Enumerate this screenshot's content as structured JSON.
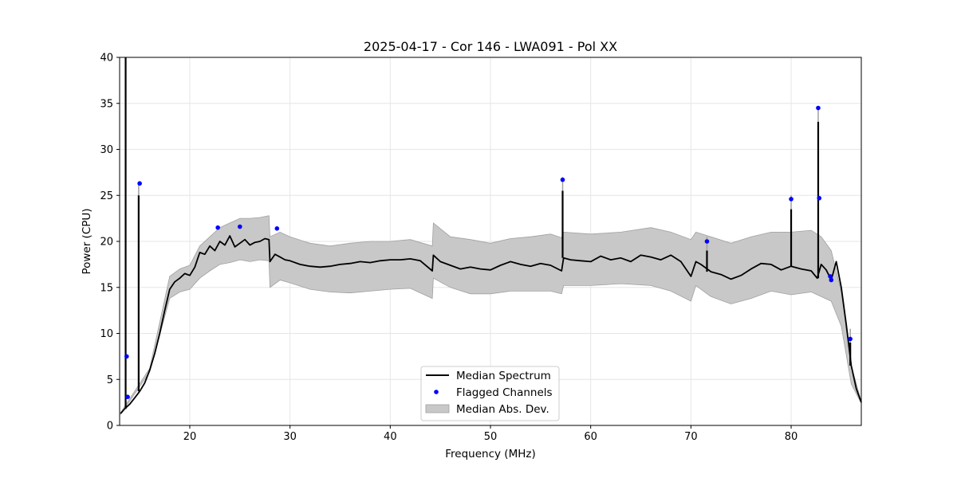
{
  "chart_data": {
    "type": "line",
    "title": "2025-04-17 - Cor 146 - LWA091 - Pol XX",
    "xlabel": "Frequency (MHz)",
    "ylabel": "Power (CPU)",
    "xlim": [
      13,
      87
    ],
    "ylim": [
      0,
      40
    ],
    "xticks": [
      20,
      30,
      40,
      50,
      60,
      70,
      80
    ],
    "yticks": [
      0,
      5,
      10,
      15,
      20,
      25,
      30,
      35,
      40
    ],
    "grid": true,
    "legend_position": "lower-center",
    "colors": {
      "median": "#000000",
      "flagged": "#0000ff",
      "mad_fill": "#c8c8c8",
      "mad_edge": "#a0a0a0",
      "grid": "#e6e6e6"
    },
    "series": [
      {
        "name": "Median Spectrum",
        "kind": "line",
        "x": [
          13.1,
          13.5,
          14.0,
          14.5,
          15.0,
          15.5,
          16.0,
          16.5,
          17.0,
          17.5,
          18.0,
          18.5,
          19.0,
          19.5,
          20.0,
          20.5,
          21.0,
          21.5,
          22.0,
          22.5,
          23.0,
          23.5,
          24.0,
          24.5,
          25.0,
          25.5,
          26.0,
          26.5,
          27.0,
          27.5,
          27.9,
          28.0,
          28.5,
          29.0,
          29.5,
          30.0,
          31.0,
          32.0,
          33.0,
          34.0,
          35.0,
          36.0,
          37.0,
          38.0,
          39.0,
          40.0,
          41.0,
          42.0,
          43.0,
          44.2,
          44.3,
          45.0,
          46.0,
          47.0,
          48.0,
          49.0,
          50.0,
          51.0,
          52.0,
          53.0,
          54.0,
          55.0,
          56.0,
          57.1,
          57.3,
          58.0,
          59.0,
          60.0,
          61.0,
          62.0,
          63.0,
          64.0,
          65.0,
          66.0,
          67.0,
          68.0,
          69.0,
          70.0,
          70.5,
          71.0,
          72.0,
          73.0,
          74.0,
          75.0,
          76.0,
          77.0,
          78.0,
          79.0,
          80.0,
          81.0,
          82.0,
          82.6,
          83.0,
          83.5,
          84.0,
          84.5,
          85.0,
          85.5,
          86.0,
          86.5,
          87.0
        ],
        "y": [
          1.3,
          1.8,
          2.3,
          3.0,
          3.7,
          4.6,
          6.0,
          7.8,
          10.0,
          12.5,
          14.8,
          15.6,
          16.0,
          16.5,
          16.3,
          17.2,
          18.8,
          18.6,
          19.5,
          19.0,
          20.0,
          19.6,
          20.6,
          19.4,
          19.8,
          20.2,
          19.6,
          19.9,
          20.0,
          20.3,
          20.2,
          17.8,
          18.6,
          18.3,
          18.0,
          17.9,
          17.5,
          17.3,
          17.2,
          17.3,
          17.5,
          17.6,
          17.8,
          17.7,
          17.9,
          18.0,
          18.0,
          18.1,
          17.9,
          16.8,
          18.5,
          17.8,
          17.4,
          17.0,
          17.2,
          17.0,
          16.9,
          17.4,
          17.8,
          17.5,
          17.3,
          17.6,
          17.4,
          16.8,
          18.2,
          18.0,
          17.9,
          17.8,
          18.4,
          18.0,
          18.2,
          17.8,
          18.5,
          18.3,
          18.0,
          18.5,
          17.8,
          16.2,
          17.8,
          17.5,
          16.7,
          16.4,
          15.9,
          16.3,
          17.0,
          17.6,
          17.5,
          16.9,
          17.3,
          17.0,
          16.8,
          16.0,
          17.5,
          16.9,
          15.8,
          17.8,
          15.0,
          11.0,
          6.5,
          4.0,
          2.5
        ]
      },
      {
        "name": "Median Spectrum spikes",
        "kind": "spikes",
        "x": [
          13.6,
          14.9,
          57.2,
          71.6,
          80.0,
          82.7,
          85.9
        ],
        "y": [
          40,
          25.0,
          25.5,
          19.0,
          23.5,
          33.0,
          9.0
        ]
      },
      {
        "name": "Flagged Channels",
        "kind": "points",
        "x": [
          13.7,
          13.8,
          15.0,
          22.8,
          25.0,
          28.7,
          57.2,
          71.6,
          80.0,
          82.7,
          82.8,
          83.9,
          84.0,
          85.9
        ],
        "y": [
          7.5,
          3.1,
          26.3,
          21.5,
          21.6,
          21.4,
          26.7,
          20.0,
          24.6,
          34.5,
          24.7,
          16.2,
          15.8,
          9.4
        ]
      },
      {
        "name": "Median Abs. Dev.",
        "kind": "band",
        "x": [
          13.1,
          16.0,
          18.0,
          19.0,
          20.0,
          21.0,
          22.0,
          23.0,
          24.0,
          25.0,
          26.0,
          27.0,
          27.9,
          28.0,
          29.0,
          30.0,
          32.0,
          34.0,
          36.0,
          38.0,
          40.0,
          42.0,
          44.2,
          44.3,
          46.0,
          48.0,
          50.0,
          52.0,
          54.0,
          56.0,
          57.1,
          57.3,
          60.0,
          63.0,
          66.0,
          68.0,
          70.0,
          70.5,
          72.0,
          74.0,
          76.0,
          78.0,
          80.0,
          82.0,
          83.0,
          84.0,
          85.0,
          86.0,
          87.0
        ],
        "lower": [
          1.2,
          5.8,
          13.8,
          14.5,
          14.8,
          16.0,
          16.8,
          17.5,
          17.7,
          18.0,
          17.8,
          18.0,
          17.9,
          15.0,
          15.8,
          15.5,
          14.8,
          14.5,
          14.4,
          14.6,
          14.8,
          14.9,
          13.8,
          16.0,
          15.0,
          14.3,
          14.3,
          14.6,
          14.6,
          14.6,
          14.3,
          15.2,
          15.2,
          15.4,
          15.2,
          14.6,
          13.5,
          15.2,
          14.0,
          13.2,
          13.8,
          14.6,
          14.2,
          14.5,
          14.0,
          13.5,
          10.8,
          4.5,
          2.4
        ],
        "upper": [
          1.4,
          6.2,
          16.2,
          17.0,
          17.4,
          19.5,
          20.5,
          21.5,
          22.0,
          22.5,
          22.5,
          22.6,
          22.8,
          20.5,
          21.0,
          20.5,
          19.8,
          19.5,
          19.8,
          20.0,
          20.0,
          20.2,
          19.5,
          22.0,
          20.5,
          20.2,
          19.8,
          20.3,
          20.5,
          20.8,
          20.4,
          21.0,
          20.8,
          21.0,
          21.5,
          21.0,
          20.2,
          21.0,
          20.5,
          19.8,
          20.5,
          21.0,
          21.0,
          21.2,
          20.5,
          19.0,
          14.5,
          6.5,
          2.6
        ]
      }
    ],
    "legend": [
      {
        "label": "Median Spectrum",
        "kind": "line"
      },
      {
        "label": "Flagged Channels",
        "kind": "points"
      },
      {
        "label": "Median Abs. Dev.",
        "kind": "band"
      }
    ]
  }
}
